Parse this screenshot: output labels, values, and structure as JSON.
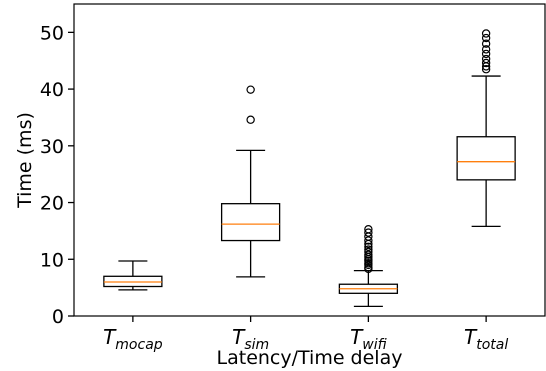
{
  "chart_data": {
    "type": "box",
    "xlabel": "Latency/Time delay",
    "ylabel": "Time (ms)",
    "ylim": [
      0,
      55
    ],
    "yticks": [
      0,
      10,
      20,
      30,
      40,
      50
    ],
    "grid": false,
    "colors": {
      "box": "#000000",
      "median": "#ff7f0e",
      "outlier": "#000000"
    },
    "categories": [
      {
        "base": "T",
        "sub": "mocap"
      },
      {
        "base": "T",
        "sub": "sim"
      },
      {
        "base": "T",
        "sub": "wifi"
      },
      {
        "base": "T",
        "sub": "total"
      }
    ],
    "boxes": [
      {
        "whisker_low": 4.6,
        "q1": 5.2,
        "median": 6.0,
        "q3": 7.0,
        "whisker_high": 9.7,
        "outliers": []
      },
      {
        "whisker_low": 6.9,
        "q1": 13.3,
        "median": 16.2,
        "q3": 19.8,
        "whisker_high": 29.2,
        "outliers": [
          34.6,
          39.9
        ]
      },
      {
        "whisker_low": 1.7,
        "q1": 4.0,
        "median": 4.8,
        "q3": 5.6,
        "whisker_high": 8.0,
        "outliers": [
          8.3,
          8.6,
          9.0,
          9.3,
          9.7,
          10.0,
          10.4,
          10.8,
          11.3,
          11.7,
          12.2,
          12.7,
          13.3,
          14.0,
          14.7,
          15.3
        ]
      },
      {
        "whisker_low": 15.8,
        "q1": 24.0,
        "median": 27.2,
        "q3": 31.6,
        "whisker_high": 42.3,
        "outliers": [
          43.5,
          44.0,
          44.6,
          45.3,
          46.2,
          47.0,
          48.0,
          49.0,
          49.8
        ]
      }
    ]
  }
}
